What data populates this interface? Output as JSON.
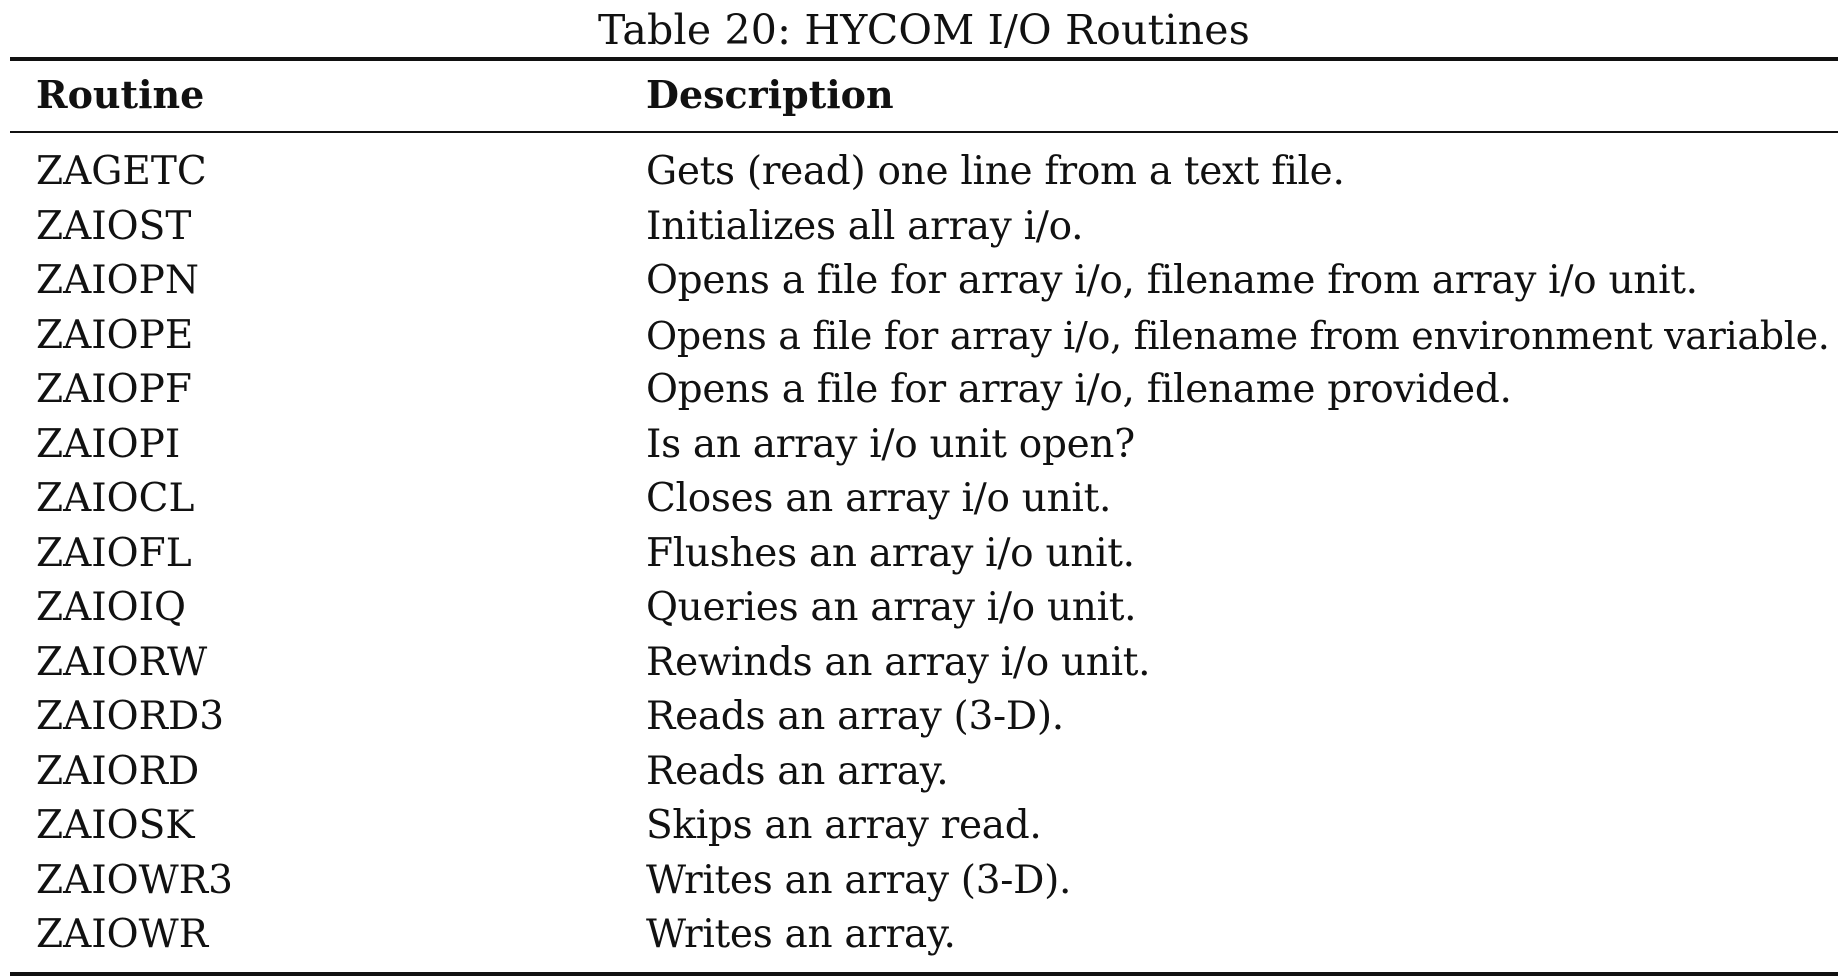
{
  "caption": "Table 20: HYCOM I/O Routines",
  "headers": {
    "routine": "Routine",
    "description": "Description"
  },
  "rows": [
    {
      "routine": "ZAGETC",
      "description": "Gets (read) one line from a text file."
    },
    {
      "routine": "ZAIOST",
      "description": "Initializes all array i/o."
    },
    {
      "routine": "ZAIOPN",
      "description": "Opens a file for array i/o, filename from array i/o unit."
    },
    {
      "routine": "ZAIOPE",
      "description": "Opens a file for array i/o, filename from environment variable."
    },
    {
      "routine": "ZAIOPF",
      "description": "Opens a file for array i/o, filename provided."
    },
    {
      "routine": "ZAIOPI",
      "description": "Is an array i/o unit open?"
    },
    {
      "routine": "ZAIOCL",
      "description": "Closes an array i/o unit."
    },
    {
      "routine": "ZAIOFL",
      "description": "Flushes an array i/o unit."
    },
    {
      "routine": "ZAIOIQ",
      "description": "Queries an array i/o unit."
    },
    {
      "routine": "ZAIORW",
      "description": "Rewinds an array i/o unit."
    },
    {
      "routine": "ZAIORD3",
      "description": "Reads an array (3-D)."
    },
    {
      "routine": "ZAIORD",
      "description": "Reads an array."
    },
    {
      "routine": "ZAIOSK",
      "description": "Skips an array read."
    },
    {
      "routine": "ZAIOWR3",
      "description": "Writes an array (3-D)."
    },
    {
      "routine": "ZAIOWR",
      "description": "Writes an array."
    }
  ]
}
